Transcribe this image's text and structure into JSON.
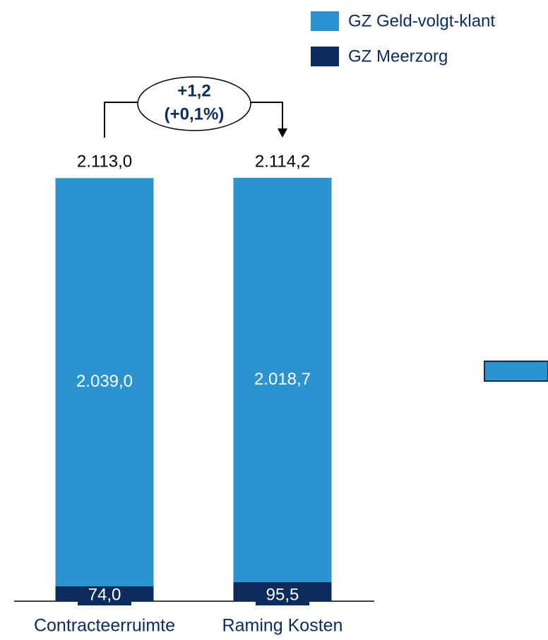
{
  "chart_data": {
    "type": "stacked_bar",
    "categories": [
      "Contracteerruimte",
      "Raming Kosten"
    ],
    "series": [
      {
        "name": "GZ Meerzorg",
        "color": "#0b2c5c",
        "values": [
          74.0,
          95.5
        ],
        "value_labels": [
          "74,0",
          "95,5"
        ]
      },
      {
        "name": "GZ Geld-volgt-klant",
        "color": "#2b93cf",
        "values": [
          2039.0,
          2018.7
        ],
        "value_labels": [
          "2.039,0",
          "2.018,7"
        ]
      }
    ],
    "totals": [
      2113.0,
      2114.2
    ],
    "total_labels": [
      "2.113,0",
      "2.114,2"
    ],
    "annotation": {
      "change": "+1,2",
      "change_pct": "(+0,1%)"
    }
  }
}
